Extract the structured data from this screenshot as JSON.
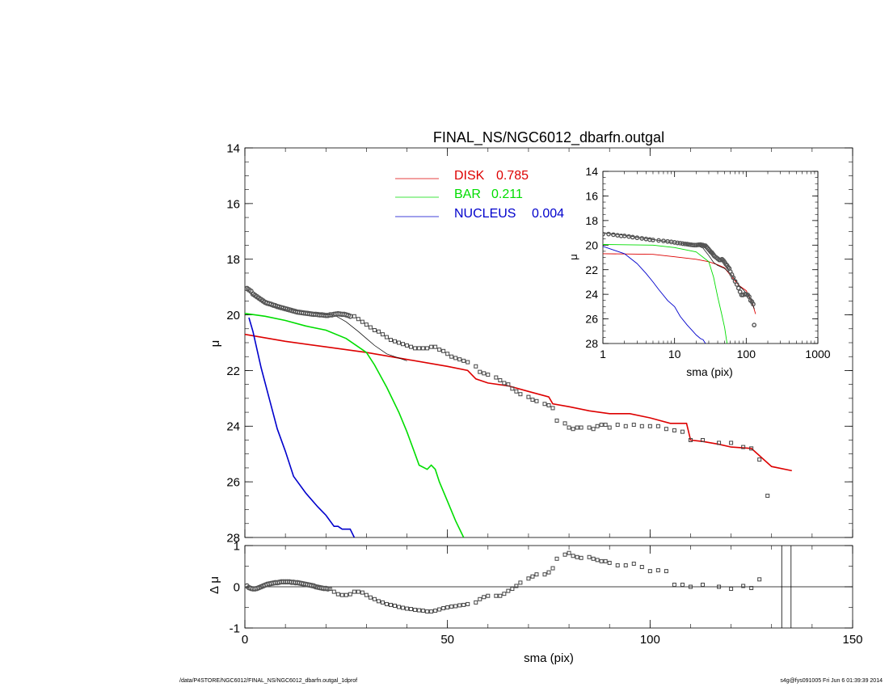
{
  "footer": {
    "left": "/data/P4STORE/NGC6012/FINAL_NS/NGC6012_dbarfn.outgal_1dprof",
    "right": "s4g@fys091005  Fri Jun  6 01:39:39 2014"
  },
  "chart_data": [
    {
      "type": "line",
      "title": "FINAL_NS/NGC6012_dbarfn.outgal",
      "xlabel": "",
      "ylabel": "μ",
      "xlim": [
        0,
        150
      ],
      "ylim": [
        28,
        14
      ],
      "y_inverted": true,
      "x_ticks": [
        0,
        50,
        100,
        150
      ],
      "y_ticks": [
        14,
        16,
        18,
        20,
        22,
        24,
        26,
        28
      ],
      "legend": {
        "placement": "top-center",
        "entries": [
          {
            "label": "DISK",
            "value": "0.785",
            "color": "#dd0000"
          },
          {
            "label": "BAR",
            "value": "0.211",
            "color": "#00dd00"
          },
          {
            "label": "NUCLEUS",
            "value": "0.004",
            "color": "#0000cc"
          }
        ]
      },
      "series": [
        {
          "name": "DISK",
          "style": "line",
          "color": "#dd0000",
          "x": [
            0,
            10,
            20,
            30,
            40,
            50,
            55,
            57,
            60,
            65,
            70,
            75,
            76,
            80,
            85,
            90,
            95,
            100,
            105,
            109,
            110,
            113,
            117,
            120,
            125,
            130,
            135
          ],
          "y": [
            20.7,
            20.95,
            21.15,
            21.35,
            21.6,
            21.85,
            22.0,
            22.3,
            22.45,
            22.55,
            22.75,
            22.95,
            23.2,
            23.3,
            23.45,
            23.55,
            23.55,
            23.7,
            23.9,
            23.9,
            24.5,
            24.55,
            24.65,
            24.75,
            24.8,
            25.45,
            25.6
          ]
        },
        {
          "name": "BAR",
          "style": "line",
          "color": "#00dd00",
          "x": [
            0,
            5,
            10,
            15,
            20,
            25,
            30,
            32,
            35,
            38,
            40,
            42,
            43,
            45,
            46,
            47,
            48,
            50,
            52,
            54
          ],
          "y": [
            19.95,
            20.05,
            20.2,
            20.4,
            20.55,
            20.85,
            21.35,
            21.8,
            22.6,
            23.5,
            24.2,
            25.0,
            25.4,
            25.55,
            25.4,
            25.55,
            26.0,
            26.7,
            27.4,
            28.0
          ]
        },
        {
          "name": "NUCLEUS",
          "style": "line",
          "color": "#0000cc",
          "x": [
            1,
            2,
            4,
            6,
            8,
            10,
            12,
            15,
            18,
            20,
            22,
            23,
            24,
            25,
            26,
            27
          ],
          "y": [
            20.1,
            20.6,
            21.9,
            23.0,
            24.1,
            24.9,
            25.8,
            26.4,
            26.9,
            27.2,
            27.6,
            27.6,
            27.7,
            27.7,
            27.7,
            28.0
          ]
        },
        {
          "name": "",
          "style": "line-thin",
          "color": "#000000",
          "x": [
            0,
            2,
            5,
            10,
            15,
            20,
            22,
            25,
            28,
            30,
            32,
            35,
            40
          ],
          "y": [
            19.0,
            19.3,
            19.6,
            19.8,
            19.9,
            20.0,
            20.0,
            20.25,
            20.6,
            20.85,
            21.1,
            21.4,
            21.65
          ]
        },
        {
          "name": "",
          "style": "squares",
          "color": "#444444",
          "x": [
            27,
            28,
            29,
            30,
            31,
            32,
            33,
            34,
            35,
            36,
            37,
            38,
            39,
            40,
            41,
            42,
            43,
            44,
            45,
            46,
            47,
            48,
            49,
            50,
            51,
            52,
            53,
            54,
            55,
            57,
            58,
            59,
            60,
            62,
            63,
            64,
            65,
            66,
            67,
            68,
            70,
            71,
            72,
            74,
            75,
            76,
            77,
            79,
            80,
            81,
            82,
            83,
            85,
            86,
            87,
            88,
            89,
            90,
            92,
            94,
            96,
            98,
            100,
            102,
            104,
            106,
            108,
            110,
            113,
            117,
            120,
            123,
            125,
            127,
            129
          ],
          "y": [
            20.05,
            20.15,
            20.25,
            20.35,
            20.45,
            20.55,
            20.6,
            20.7,
            20.8,
            20.9,
            20.95,
            21.0,
            21.05,
            21.1,
            21.15,
            21.2,
            21.2,
            21.2,
            21.2,
            21.15,
            21.15,
            21.25,
            21.3,
            21.4,
            21.5,
            21.55,
            21.6,
            21.65,
            21.7,
            21.85,
            22.05,
            22.1,
            22.15,
            22.25,
            22.35,
            22.45,
            22.5,
            22.65,
            22.75,
            22.85,
            22.95,
            23.05,
            23.1,
            23.2,
            23.25,
            23.35,
            23.8,
            23.9,
            24.05,
            24.1,
            24.05,
            24.05,
            24.05,
            24.1,
            24.0,
            23.95,
            23.95,
            24.05,
            23.95,
            24.0,
            23.95,
            24.0,
            24.0,
            24.0,
            24.1,
            24.15,
            24.2,
            24.5,
            24.5,
            24.6,
            24.6,
            24.75,
            24.8,
            25.2,
            26.5
          ]
        },
        {
          "name": "",
          "style": "circles",
          "color": "#555555",
          "x": [
            0.5,
            1,
            1.5,
            2,
            2.5,
            3,
            3.5,
            4,
            4.5,
            5,
            5.5,
            6,
            6.5,
            7,
            7.5,
            8,
            8.5,
            9,
            9.5,
            10,
            10.5,
            11,
            11.5,
            12,
            12.5,
            13,
            13.5,
            14,
            14.5,
            15,
            15.5,
            16,
            16.5,
            17,
            17.5,
            18,
            18.5,
            19,
            19.5,
            20,
            20.5,
            21,
            21.5,
            22,
            22.5,
            23,
            23.5,
            24,
            24.5,
            25,
            25.5,
            26
          ],
          "y": [
            19.05,
            19.1,
            19.15,
            19.25,
            19.3,
            19.35,
            19.4,
            19.45,
            19.5,
            19.55,
            19.58,
            19.6,
            19.62,
            19.65,
            19.67,
            19.7,
            19.72,
            19.74,
            19.76,
            19.78,
            19.8,
            19.82,
            19.84,
            19.86,
            19.88,
            19.9,
            19.91,
            19.92,
            19.93,
            19.94,
            19.95,
            19.96,
            19.97,
            19.98,
            19.98,
            19.99,
            20.0,
            20.0,
            20.01,
            20.02,
            20.02,
            20.0,
            20.0,
            19.98,
            19.97,
            19.96,
            19.97,
            19.98,
            19.98,
            20.0,
            20.02,
            20.05
          ]
        }
      ]
    },
    {
      "type": "line",
      "title": "",
      "xlabel": "sma (pix)",
      "ylabel": "Δ μ",
      "xlim": [
        0,
        150
      ],
      "ylim": [
        -1,
        1
      ],
      "x_ticks": [
        0,
        50,
        100,
        150
      ],
      "y_ticks": [
        1,
        0,
        -1
      ],
      "vlines": [
        132.5,
        134.8
      ],
      "series": [
        {
          "name": "",
          "style": "squares",
          "color": "#444444",
          "x": [
            21,
            22,
            23,
            24,
            25,
            26,
            27,
            28,
            29,
            30,
            31,
            32,
            33,
            34,
            35,
            36,
            37,
            38,
            39,
            40,
            41,
            42,
            43,
            44,
            45,
            46,
            47,
            48,
            49,
            50,
            51,
            52,
            53,
            54,
            55,
            57,
            58,
            59,
            60,
            62,
            63,
            64,
            65,
            66,
            67,
            68,
            70,
            71,
            72,
            74,
            75,
            76,
            77,
            79,
            80,
            81,
            82,
            83,
            85,
            86,
            87,
            88,
            89,
            90,
            92,
            94,
            96,
            98,
            100,
            102,
            104,
            106,
            108,
            110,
            113,
            117,
            120,
            123,
            125,
            127
          ],
          "y": [
            -0.05,
            -0.12,
            -0.18,
            -0.2,
            -0.2,
            -0.18,
            -0.12,
            -0.12,
            -0.14,
            -0.2,
            -0.26,
            -0.3,
            -0.35,
            -0.38,
            -0.42,
            -0.44,
            -0.46,
            -0.49,
            -0.51,
            -0.53,
            -0.54,
            -0.56,
            -0.57,
            -0.58,
            -0.6,
            -0.6,
            -0.58,
            -0.55,
            -0.52,
            -0.5,
            -0.48,
            -0.47,
            -0.45,
            -0.44,
            -0.42,
            -0.38,
            -0.3,
            -0.25,
            -0.22,
            -0.22,
            -0.22,
            -0.17,
            -0.1,
            -0.05,
            0.02,
            0.1,
            0.2,
            0.25,
            0.3,
            0.3,
            0.35,
            0.45,
            0.68,
            0.78,
            0.82,
            0.75,
            0.72,
            0.7,
            0.72,
            0.68,
            0.65,
            0.62,
            0.62,
            0.58,
            0.52,
            0.52,
            0.56,
            0.48,
            0.38,
            0.4,
            0.38,
            0.05,
            0.05,
            0.0,
            0.05,
            0.0,
            -0.05,
            0.02,
            -0.03,
            0.18
          ]
        },
        {
          "name": "",
          "style": "circles",
          "color": "#555555",
          "x": [
            0.5,
            1,
            1.5,
            2,
            2.5,
            3,
            3.5,
            4,
            4.5,
            5,
            5.5,
            6,
            6.5,
            7,
            7.5,
            8,
            8.5,
            9,
            9.5,
            10,
            10.5,
            11,
            11.5,
            12,
            12.5,
            13,
            13.5,
            14,
            14.5,
            15,
            15.5,
            16,
            16.5,
            17,
            17.5,
            18,
            18.5,
            19,
            19.5,
            20,
            20.5
          ],
          "y": [
            0.02,
            -0.02,
            -0.04,
            -0.05,
            -0.05,
            -0.04,
            -0.02,
            0.0,
            0.02,
            0.04,
            0.06,
            0.07,
            0.08,
            0.09,
            0.1,
            0.1,
            0.11,
            0.12,
            0.12,
            0.12,
            0.12,
            0.12,
            0.11,
            0.11,
            0.1,
            0.1,
            0.09,
            0.08,
            0.07,
            0.06,
            0.05,
            0.04,
            0.03,
            0.02,
            0.0,
            -0.01,
            -0.02,
            -0.03,
            -0.04,
            -0.04,
            -0.05
          ]
        }
      ]
    },
    {
      "type": "line",
      "title": "",
      "xlabel": "sma (pix)",
      "ylabel": "μ",
      "xscale": "log",
      "xlim": [
        1,
        1000
      ],
      "ylim": [
        28,
        14
      ],
      "y_inverted": true,
      "x_ticks": [
        1,
        10,
        100,
        1000
      ],
      "y_ticks": [
        14,
        16,
        18,
        20,
        22,
        24,
        26,
        28
      ],
      "series": [
        {
          "name": "DISK",
          "style": "line",
          "color": "#dd0000",
          "x": [
            1,
            5,
            10,
            20,
            30,
            40,
            50,
            60,
            80,
            100,
            120,
            135
          ],
          "y": [
            20.7,
            20.75,
            20.95,
            21.15,
            21.35,
            21.6,
            21.85,
            22.45,
            23.3,
            23.7,
            24.6,
            25.6
          ]
        },
        {
          "name": "BAR",
          "style": "line",
          "color": "#00dd00",
          "x": [
            1,
            5,
            10,
            20,
            30,
            35,
            40,
            45,
            50,
            54
          ],
          "y": [
            19.95,
            20.0,
            20.2,
            20.55,
            21.35,
            22.6,
            24.2,
            25.5,
            26.7,
            28.0
          ]
        },
        {
          "name": "NUCLEUS",
          "style": "line",
          "color": "#0000cc",
          "x": [
            1,
            2,
            3,
            4,
            5,
            6,
            8,
            10,
            12,
            15,
            18,
            20,
            23,
            25,
            27
          ],
          "y": [
            20.1,
            20.7,
            21.5,
            22.3,
            23.0,
            23.6,
            24.5,
            25.0,
            25.8,
            26.5,
            27.0,
            27.3,
            27.6,
            27.7,
            28.0
          ]
        },
        {
          "name": "",
          "style": "line-thin",
          "color": "#000000",
          "x": [
            1,
            2,
            5,
            10,
            20,
            25,
            30,
            35,
            40,
            50,
            60,
            70,
            80,
            90,
            100,
            110,
            120,
            130
          ],
          "y": [
            19.0,
            19.2,
            19.55,
            19.8,
            20.0,
            20.25,
            20.85,
            21.4,
            21.65,
            21.9,
            22.3,
            22.8,
            23.3,
            23.6,
            23.9,
            24.2,
            24.6,
            25.2
          ]
        },
        {
          "name": "",
          "style": "circles",
          "color": "#555555",
          "x": [
            1,
            1.2,
            1.4,
            1.6,
            1.8,
            2,
            2.3,
            2.6,
            3,
            3.5,
            4,
            4.5,
            5,
            6,
            7,
            8,
            9,
            10,
            11,
            12,
            13,
            14,
            15,
            16,
            17,
            18,
            19,
            20,
            21,
            22,
            23,
            24,
            25,
            26,
            27,
            28,
            29,
            30,
            31,
            32,
            33,
            34,
            35,
            36,
            38,
            40,
            42,
            44,
            46,
            48,
            50,
            52,
            54,
            56,
            58,
            60,
            63,
            66,
            70,
            74,
            78,
            82,
            86,
            90,
            95,
            100,
            105,
            110,
            115,
            120,
            125,
            129
          ],
          "y": [
            19.1,
            19.1,
            19.15,
            19.2,
            19.25,
            19.25,
            19.3,
            19.35,
            19.4,
            19.45,
            19.5,
            19.55,
            19.58,
            19.62,
            19.66,
            19.7,
            19.74,
            19.78,
            19.82,
            19.84,
            19.88,
            19.9,
            19.92,
            19.95,
            19.97,
            19.99,
            20.0,
            20.0,
            19.98,
            19.97,
            19.96,
            19.98,
            20.0,
            20.05,
            20.05,
            20.15,
            20.25,
            20.35,
            20.45,
            20.55,
            20.6,
            20.7,
            20.8,
            20.9,
            21.0,
            21.1,
            21.2,
            21.2,
            21.15,
            21.25,
            21.4,
            21.55,
            21.65,
            21.8,
            21.9,
            22.15,
            22.4,
            22.65,
            22.95,
            23.2,
            23.5,
            23.8,
            24.05,
            24.05,
            24.0,
            24.0,
            24.05,
            24.2,
            24.5,
            24.6,
            24.8,
            26.5
          ]
        }
      ]
    }
  ]
}
